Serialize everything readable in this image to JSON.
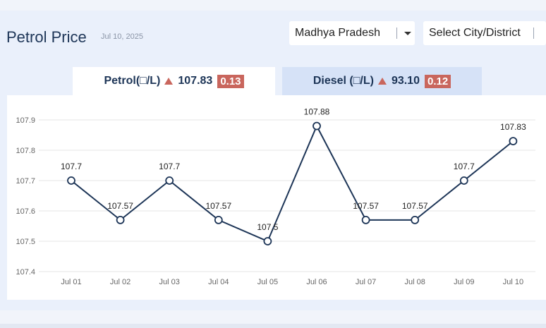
{
  "header": {
    "title": "Petrol Price",
    "date": "Jul 10, 2025"
  },
  "filters": {
    "state": "Madhya Pradesh",
    "city": "Select City/District"
  },
  "tabs": [
    {
      "label": "Petrol(□/L)",
      "price": "107.83",
      "change": "0.13"
    },
    {
      "label": "Diesel (□/L)",
      "price": "93.10",
      "change": "0.12"
    }
  ],
  "colors": {
    "line": "#1d3557",
    "badge": "#c9665d",
    "grid": "#e6e6e6"
  },
  "chart_data": {
    "type": "line",
    "title": "",
    "xlabel": "",
    "ylabel": "",
    "categories": [
      "Jul 01",
      "Jul 02",
      "Jul 03",
      "Jul 04",
      "Jul 05",
      "Jul 06",
      "Jul 07",
      "Jul 08",
      "Jul 09",
      "Jul 10"
    ],
    "series": [
      {
        "name": "Petrol",
        "values": [
          107.7,
          107.57,
          107.7,
          107.57,
          107.5,
          107.88,
          107.57,
          107.57,
          107.7,
          107.83
        ]
      }
    ],
    "data_labels": [
      "107.7",
      "107.57",
      "107.7",
      "107.57",
      "107.5",
      "107.88",
      "107.57",
      "107.57",
      "107.7",
      "107.83"
    ],
    "yticks": [
      "107.4",
      "107.5",
      "107.6",
      "107.7",
      "107.8",
      "107.9"
    ],
    "ylim": [
      107.4,
      107.9
    ],
    "grid": true
  }
}
